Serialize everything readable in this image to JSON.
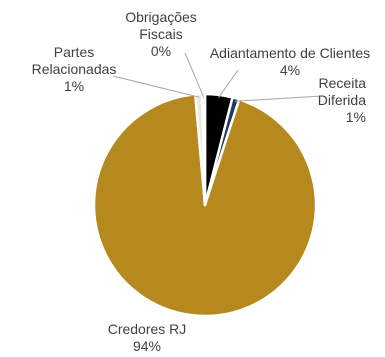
{
  "chart_data": {
    "type": "pie",
    "title": "",
    "slices": [
      {
        "label_lines": [
          "Adiantamento de Clientes",
          "4%"
        ],
        "value": 4,
        "color": "#000000"
      },
      {
        "label_lines": [
          "Receita",
          "Diferida",
          "1%"
        ],
        "value": 1,
        "color": "#1f3864"
      },
      {
        "label_lines": [
          "Credores RJ",
          "94%"
        ],
        "value": 94,
        "color": "#b5891e"
      },
      {
        "label_lines": [
          "Partes",
          "Relacionadas",
          "1%"
        ],
        "value": 1,
        "color": "#ede8df"
      },
      {
        "label_lines": [
          "Obrigações",
          "Fiscais",
          "0%"
        ],
        "value": 0.4,
        "color": "#c9a24a"
      }
    ],
    "legend": "none",
    "start_angle_deg": 0,
    "direction": "clockwise"
  }
}
